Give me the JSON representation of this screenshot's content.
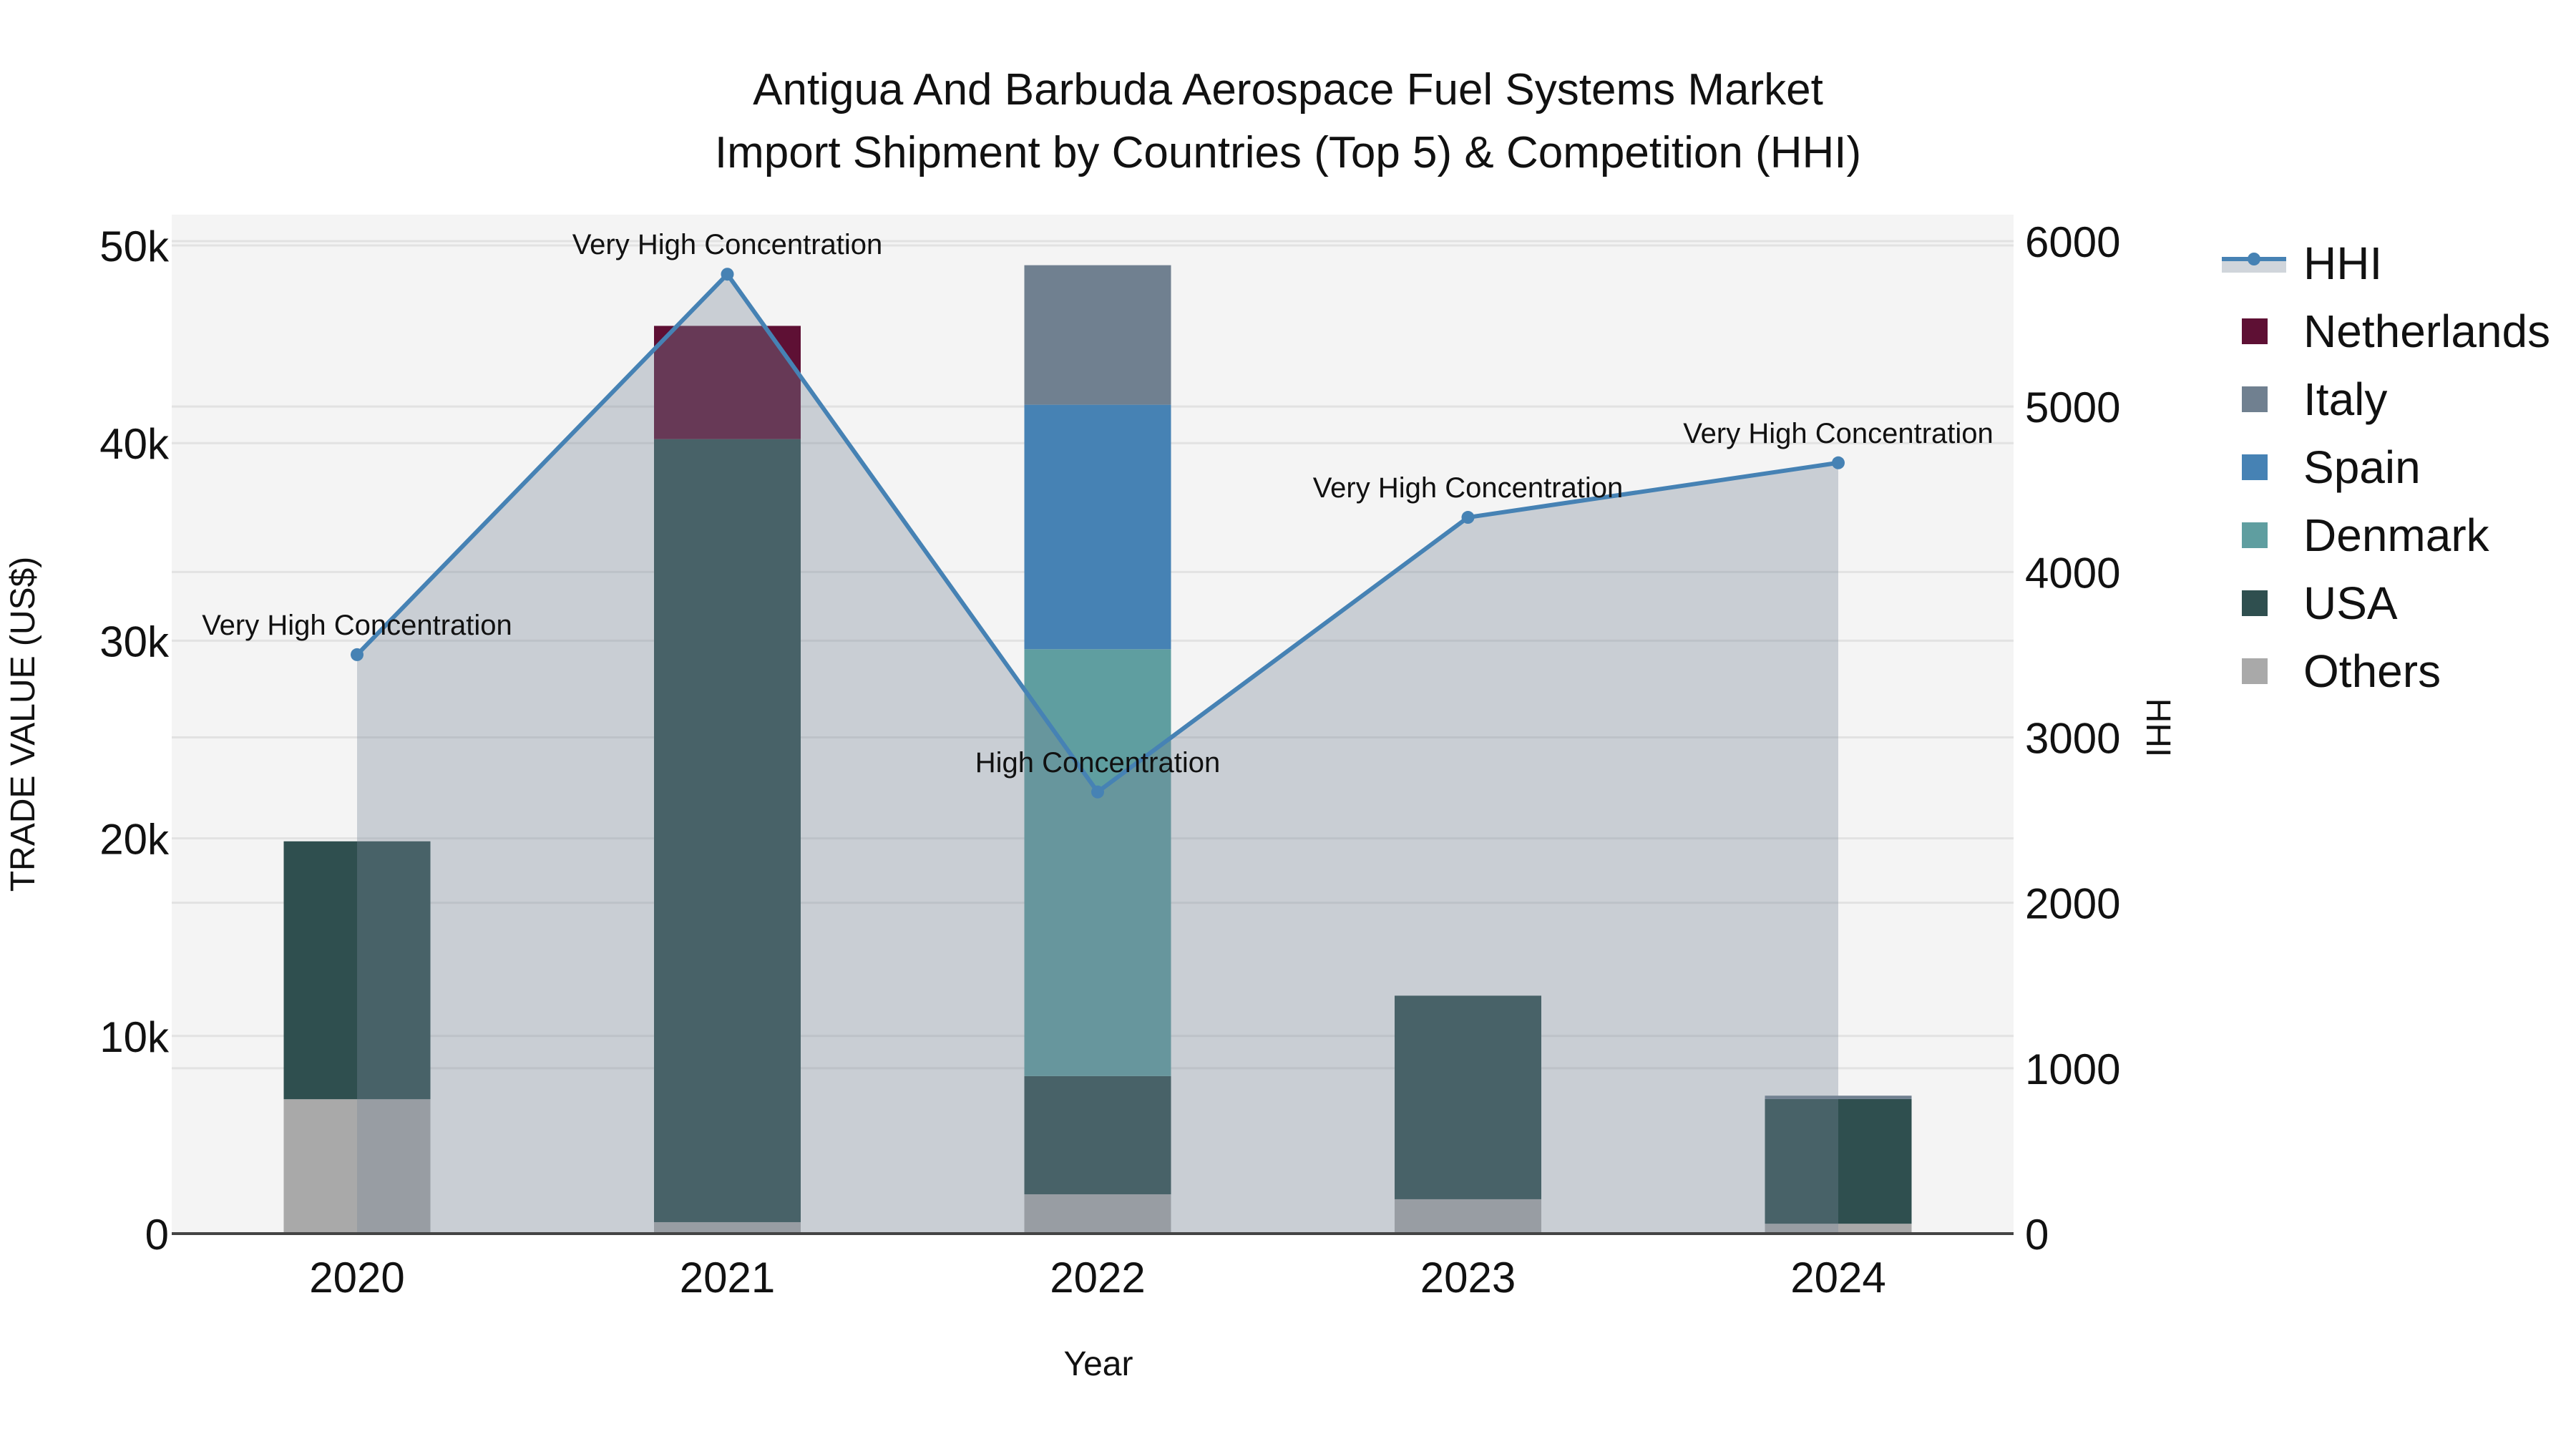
{
  "title": {
    "line1": "Antigua And Barbuda Aerospace Fuel Systems Market",
    "line2": "Import Shipment by Countries (Top 5) & Competition (HHI)"
  },
  "axes": {
    "x_title": "Year",
    "y_left_title": "TRADE VALUE (US$)",
    "y_right_title": "HHI",
    "y_left_ticks": [
      "0",
      "10k",
      "20k",
      "30k",
      "40k",
      "50k"
    ],
    "y_right_ticks": [
      "0",
      "1000",
      "2000",
      "3000",
      "4000",
      "5000",
      "6000"
    ]
  },
  "legend": {
    "items": [
      {
        "label": "HHI",
        "type": "line",
        "color": "#4682B4"
      },
      {
        "label": "Netherlands",
        "type": "bar",
        "color": "#5E1034"
      },
      {
        "label": "Italy",
        "type": "bar",
        "color": "#708090"
      },
      {
        "label": "Spain",
        "type": "bar",
        "color": "#4682B4"
      },
      {
        "label": "Denmark",
        "type": "bar",
        "color": "#5F9EA0"
      },
      {
        "label": "USA",
        "type": "bar",
        "color": "#2F4F4F"
      },
      {
        "label": "Others",
        "type": "bar",
        "color": "#A9A9A9"
      }
    ]
  },
  "colors": {
    "plot_bg": "#F4F4F4",
    "hhi_line": "#4682B4",
    "hhi_fill": "rgba(119,136,153,0.35)",
    "grid": "#E2E2E2",
    "axis": "#444444"
  },
  "chart_data": {
    "type": "bar",
    "title": "Antigua And Barbuda Aerospace Fuel Systems Market Import Shipment by Countries (Top 5) & Competition (HHI)",
    "xlabel": "Year",
    "ylabel": "TRADE VALUE (US$)",
    "y2label": "HHI",
    "categories": [
      "2020",
      "2021",
      "2022",
      "2023",
      "2024"
    ],
    "ylim": [
      0,
      51500
    ],
    "y2lim": [
      0,
      6180
    ],
    "stacked": true,
    "legend_position": "right",
    "grid": true,
    "series": [
      {
        "name": "Others",
        "type": "bar",
        "color": "#A9A9A9",
        "values": [
          6800,
          580,
          1990,
          1740,
          500
        ]
      },
      {
        "name": "USA",
        "type": "bar",
        "color": "#2F4F4F",
        "values": [
          13050,
          39620,
          5980,
          10300,
          6310
        ]
      },
      {
        "name": "Denmark",
        "type": "bar",
        "color": "#5F9EA0",
        "values": [
          0,
          0,
          21600,
          0,
          0
        ]
      },
      {
        "name": "Spain",
        "type": "bar",
        "color": "#4682B4",
        "values": [
          0,
          0,
          12370,
          0,
          0
        ]
      },
      {
        "name": "Italy",
        "type": "bar",
        "color": "#708090",
        "values": [
          0,
          0,
          7060,
          0,
          170
        ]
      },
      {
        "name": "Netherlands",
        "type": "bar",
        "color": "#5E1034",
        "values": [
          0,
          5730,
          0,
          0,
          0
        ]
      },
      {
        "name": "HHI",
        "type": "area-line",
        "axis": "right",
        "color": "#4682B4",
        "values": [
          3500,
          5800,
          2670,
          4330,
          4660
        ]
      }
    ],
    "annotations": [
      {
        "x": "2020",
        "text": "Very High Concentration"
      },
      {
        "x": "2021",
        "text": "Very High Concentration"
      },
      {
        "x": "2022",
        "text": "High Concentration"
      },
      {
        "x": "2023",
        "text": "Very High Concentration"
      },
      {
        "x": "2024",
        "text": "Very High Concentration"
      }
    ]
  }
}
